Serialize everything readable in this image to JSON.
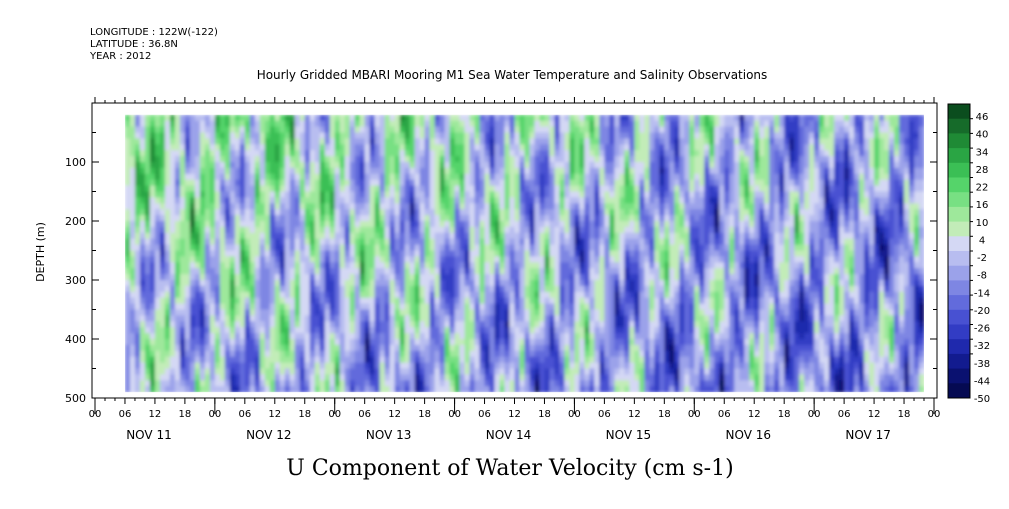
{
  "header": {
    "longitude": "LONGITUDE : 122W(-122)",
    "latitude": "LATITUDE : 36.8N",
    "year": "YEAR : 2012",
    "title": "Hourly Gridded MBARI Mooring M1 Sea Water Temperature and Salinity Observations"
  },
  "chart_data": {
    "type": "heatmap",
    "title": "U Component of Water Velocity (cm s-1)",
    "ylabel": "DEPTH (m)",
    "ylim": [
      500,
      0
    ],
    "y_ticks": [
      100,
      200,
      300,
      400,
      500
    ],
    "y_minor_ticks": [
      50,
      150,
      250,
      350,
      450
    ],
    "x_hour_labels": [
      "00",
      "06",
      "12",
      "18",
      "00",
      "06",
      "12",
      "18",
      "00",
      "06",
      "12",
      "18",
      "00",
      "06",
      "12",
      "18",
      "00",
      "06",
      "12",
      "18",
      "00",
      "06",
      "12",
      "18",
      "00",
      "06",
      "12",
      "18",
      "00"
    ],
    "day_labels": [
      "NOV 11",
      "NOV 12",
      "NOV 13",
      "NOV 14",
      "NOV 15",
      "NOV 16",
      "NOV 17"
    ],
    "colorbar_labels": [
      "46",
      "40",
      "34",
      "28",
      "22",
      "16",
      "10",
      "4",
      "-2",
      "-8",
      "-14",
      "-20",
      "-26",
      "-32",
      "-38",
      "-44",
      "-50"
    ],
    "colorbar_colors": [
      "#0b4d1e",
      "#166b2a",
      "#1f8a35",
      "#2aa544",
      "#3bbf55",
      "#55d46a",
      "#78e083",
      "#9ee89b",
      "#c2ecb8",
      "#d4d8f4",
      "#b8bdf0",
      "#9ba2ea",
      "#7e86e3",
      "#626bdc",
      "#4851d2",
      "#323cc4",
      "#1f29ad",
      "#121b8f",
      "#0a1170",
      "#050a52"
    ],
    "data_extent": {
      "x_start_hours": 6,
      "x_end_hours": 166,
      "depth_top": 20,
      "depth_bottom": 490
    }
  }
}
